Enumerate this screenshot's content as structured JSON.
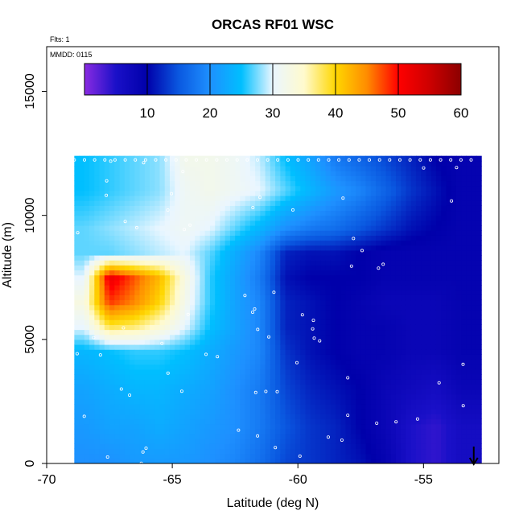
{
  "chart_data": {
    "type": "heatmap",
    "title": "ORCAS RF01 WSC",
    "notes": [
      "Flts: 1",
      "MMDD: 0115"
    ],
    "xlabel": "Latitude (deg N)",
    "ylabel": "Altitude (m)",
    "xlim": [
      -70,
      -52
    ],
    "ylim": [
      0,
      16800
    ],
    "x_ticks": [
      -70,
      -65,
      -60,
      -55
    ],
    "x_tick_labels": [
      "-70",
      "-65",
      "-60",
      "-55"
    ],
    "y_ticks": [
      0,
      5000,
      10000,
      15000
    ],
    "y_tick_labels": [
      "0",
      "5000",
      "10000",
      "15000"
    ],
    "colorbar": {
      "range": [
        0,
        60
      ],
      "ticks": [
        10,
        20,
        30,
        40,
        50,
        60
      ],
      "tick_labels": [
        "10",
        "20",
        "30",
        "40",
        "50",
        "60"
      ],
      "stops": [
        {
          "v": 0,
          "color": "#8a2be2"
        },
        {
          "v": 5,
          "color": "#1a10c8"
        },
        {
          "v": 10,
          "color": "#0000aa"
        },
        {
          "v": 15,
          "color": "#0a58e0"
        },
        {
          "v": 20,
          "color": "#1e90ff"
        },
        {
          "v": 25,
          "color": "#00bfff"
        },
        {
          "v": 30,
          "color": "#eaf6ff"
        },
        {
          "v": 35,
          "color": "#fffacd"
        },
        {
          "v": 40,
          "color": "#ffd700"
        },
        {
          "v": 45,
          "color": "#ff8c00"
        },
        {
          "v": 50,
          "color": "#ff0000"
        },
        {
          "v": 55,
          "color": "#cd0000"
        },
        {
          "v": 60,
          "color": "#8b0000"
        }
      ]
    },
    "data_extent": {
      "lat": [
        -68.9,
        -52.7
      ],
      "alt": [
        0,
        12300
      ]
    },
    "marker": {
      "lat": -53.0,
      "symbol": "arrow-down"
    },
    "columns": [
      {
        "lat": -68.5,
        "alt": [
          0,
          1500,
          3000,
          4500,
          5500,
          6500,
          7500,
          8500,
          9500,
          11000,
          12300
        ],
        "v": [
          20,
          21,
          22,
          24,
          30,
          33,
          30,
          27,
          27,
          25,
          25
        ]
      },
      {
        "lat": -67.5,
        "alt": [
          0,
          1500,
          3000,
          4500,
          5500,
          6500,
          7500,
          8500,
          9500,
          11000,
          12300
        ],
        "v": [
          20,
          22,
          23,
          25,
          38,
          48,
          52,
          27,
          28,
          26,
          26
        ]
      },
      {
        "lat": -66.5,
        "alt": [
          0,
          1500,
          3000,
          4500,
          5500,
          6500,
          7500,
          8500,
          9500,
          11000,
          12300
        ],
        "v": [
          21,
          22,
          24,
          26,
          37,
          45,
          47,
          28,
          29,
          27,
          27
        ]
      },
      {
        "lat": -65.5,
        "alt": [
          0,
          1500,
          3000,
          4500,
          5500,
          6500,
          7500,
          8500,
          9500,
          11000,
          12300
        ],
        "v": [
          21,
          23,
          24,
          26,
          34,
          40,
          42,
          29,
          30,
          28,
          28
        ]
      },
      {
        "lat": -64.5,
        "alt": [
          0,
          1500,
          3000,
          4500,
          5500,
          6500,
          7500,
          8500,
          9500,
          11000,
          12300
        ],
        "v": [
          21,
          22,
          23,
          25,
          30,
          32,
          33,
          30,
          31,
          31,
          32
        ]
      },
      {
        "lat": -63.5,
        "alt": [
          0,
          1500,
          3000,
          4500,
          5500,
          6500,
          7500,
          8500,
          9500,
          11000,
          12300
        ],
        "v": [
          20,
          21,
          22,
          23,
          25,
          26,
          26,
          27,
          30,
          32,
          32
        ]
      },
      {
        "lat": -62.5,
        "alt": [
          0,
          1500,
          3000,
          4500,
          5500,
          6500,
          7500,
          8500,
          9500,
          11000,
          12300
        ],
        "v": [
          19,
          20,
          20,
          21,
          22,
          22,
          22,
          23,
          27,
          31,
          31
        ]
      },
      {
        "lat": -61.5,
        "alt": [
          0,
          1500,
          3000,
          4500,
          5500,
          6500,
          7500,
          8500,
          9500,
          11000,
          12300
        ],
        "v": [
          17,
          18,
          18,
          19,
          19,
          19,
          18,
          19,
          24,
          30,
          29
        ]
      },
      {
        "lat": -60.5,
        "alt": [
          0,
          1500,
          3000,
          4500,
          5500,
          6500,
          7500,
          8500,
          9500,
          11000,
          12300
        ],
        "v": [
          14,
          15,
          14,
          13,
          12,
          12,
          11,
          12,
          20,
          27,
          25
        ]
      },
      {
        "lat": -59.5,
        "alt": [
          0,
          1500,
          3000,
          4500,
          5500,
          6500,
          7500,
          8500,
          9500,
          11000,
          12300
        ],
        "v": [
          13,
          13,
          12,
          11,
          11,
          11,
          10,
          11,
          18,
          24,
          22
        ]
      },
      {
        "lat": -58.5,
        "alt": [
          0,
          1500,
          3000,
          4500,
          5500,
          6500,
          7500,
          8500,
          9500,
          11000,
          12300
        ],
        "v": [
          12,
          12,
          11,
          10,
          10,
          10,
          10,
          11,
          17,
          21,
          18
        ]
      },
      {
        "lat": -57.5,
        "alt": [
          0,
          1500,
          3000,
          4500,
          5500,
          6500,
          7500,
          8500,
          9500,
          11000,
          12300
        ],
        "v": [
          11,
          10,
          10,
          9,
          9,
          9,
          10,
          10,
          15,
          19,
          16
        ]
      },
      {
        "lat": -56.5,
        "alt": [
          0,
          1500,
          3000,
          4500,
          5500,
          6500,
          7500,
          8500,
          9500,
          11000,
          12300
        ],
        "v": [
          9,
          8,
          8,
          9,
          9,
          8,
          9,
          9,
          13,
          16,
          14
        ]
      },
      {
        "lat": -55.5,
        "alt": [
          0,
          1500,
          3000,
          4500,
          5500,
          6500,
          7500,
          8500,
          9500,
          11000,
          12300
        ],
        "v": [
          5,
          5,
          7,
          8,
          8,
          8,
          9,
          9,
          11,
          13,
          12
        ]
      },
      {
        "lat": -54.5,
        "alt": [
          0,
          1500,
          3000,
          4500,
          5500,
          6500,
          7500,
          8500,
          9500,
          11000,
          12300
        ],
        "v": [
          4,
          4,
          6,
          8,
          8,
          8,
          9,
          9,
          10,
          11,
          10
        ]
      },
      {
        "lat": -53.5,
        "alt": [
          0,
          1500,
          3000,
          4500,
          5500,
          6500,
          7500,
          8500,
          9500,
          11000,
          12300
        ],
        "v": [
          6,
          6,
          8,
          9,
          9,
          9,
          9,
          9,
          9,
          9,
          9
        ]
      }
    ]
  }
}
